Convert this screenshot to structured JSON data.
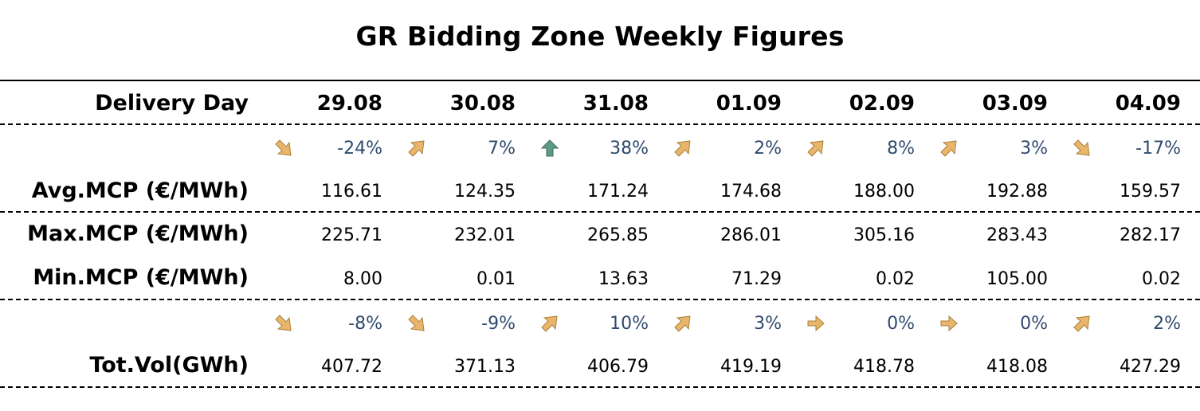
{
  "title": "GR Bidding Zone Weekly Figures",
  "header_label": "Delivery Day",
  "days": [
    "29.08",
    "30.08",
    "31.08",
    "01.09",
    "02.09",
    "03.09",
    "04.09"
  ],
  "price_change": {
    "values": [
      "-24%",
      "7%",
      "38%",
      "2%",
      "8%",
      "3%",
      "-17%"
    ],
    "icons": [
      "arrow-down-right-icon",
      "arrow-up-right-icon",
      "arrow-up-icon",
      "arrow-up-right-icon",
      "arrow-up-right-icon",
      "arrow-up-right-icon",
      "arrow-down-right-icon"
    ]
  },
  "rows": {
    "avg": {
      "label": "Avg.MCP (€/MWh)",
      "values": [
        "116.61",
        "124.35",
        "171.24",
        "174.68",
        "188.00",
        "192.88",
        "159.57"
      ]
    },
    "max": {
      "label": "Max.MCP (€/MWh)",
      "values": [
        "225.71",
        "232.01",
        "265.85",
        "286.01",
        "305.16",
        "283.43",
        "282.17"
      ]
    },
    "min": {
      "label": "Min.MCP (€/MWh)",
      "values": [
        "8.00",
        "0.01",
        "13.63",
        "71.29",
        "0.02",
        "105.00",
        "0.02"
      ]
    },
    "vol": {
      "label": "Tot.Vol(GWh)",
      "values": [
        "407.72",
        "371.13",
        "406.79",
        "419.19",
        "418.78",
        "418.08",
        "427.29"
      ]
    }
  },
  "volume_change": {
    "values": [
      "-8%",
      "-9%",
      "10%",
      "3%",
      "0%",
      "0%",
      "2%"
    ],
    "icons": [
      "arrow-down-right-icon",
      "arrow-down-right-icon",
      "arrow-up-right-icon",
      "arrow-up-right-icon",
      "arrow-right-icon",
      "arrow-right-icon",
      "arrow-up-right-icon"
    ]
  },
  "colors": {
    "arrow_fill": "#e8b56a",
    "arrow_stroke": "#a8803c",
    "arrow_up_fill": "#5a9a86",
    "arrow_up_stroke": "#3d6d5e",
    "percent_text": "#2f4a6e"
  }
}
